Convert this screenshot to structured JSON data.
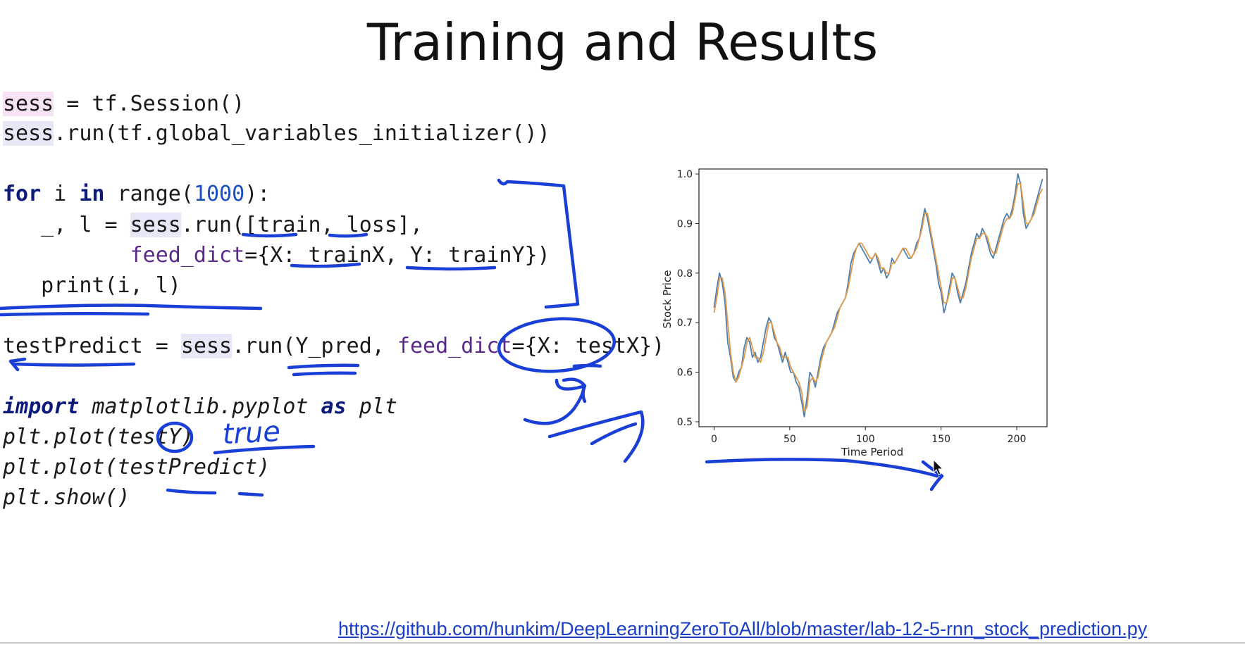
{
  "slide": {
    "title": "Training and Results",
    "link": "https://github.com/hunkim/DeepLearningZeroToAll/blob/master/lab-12-5-rnn_stock_prediction.py"
  },
  "code": {
    "l1": {
      "a": "sess",
      "b": " = tf.Session()"
    },
    "l2": {
      "a": "sess",
      "b": ".run(tf.global_variables_initializer())"
    },
    "l3": {
      "kw1": "for",
      "b": " i ",
      "kw2": "in",
      "c": " range(",
      "num": "1000",
      "d": "):"
    },
    "l4": {
      "a": "   _, l = ",
      "b": "sess",
      "c": ".run([train, loss],"
    },
    "l5": {
      "a": "          ",
      "kwarg": "feed_dict",
      "b": "={X: trainX, Y: trainY})"
    },
    "l6": {
      "a": "   print(i, l)"
    },
    "l7": {
      "a": "testPredict = ",
      "b": "sess",
      "c": ".run(Y_pred, ",
      "kwarg": "feed_dict",
      "d": "={X: testX})"
    },
    "l8": {
      "kw1": "import",
      "b": " matplotlib.pyplot ",
      "kw2": "as",
      "c": " plt"
    },
    "l9": {
      "a": "plt.plot(testY)"
    },
    "l10": {
      "a": "plt.plot(testPredict)"
    },
    "l11": {
      "a": "plt.show()"
    }
  },
  "annotation": {
    "true_word": "true"
  },
  "chart_data": {
    "type": "line",
    "xlabel": "Time Period",
    "ylabel": "Stock Price",
    "xlim": [
      -10,
      220
    ],
    "ylim": [
      0.49,
      1.01
    ],
    "xticks": [
      0,
      50,
      100,
      150,
      200
    ],
    "yticks": [
      0.5,
      0.6,
      0.7,
      0.8,
      0.9,
      1.0
    ],
    "grid": false,
    "series": [
      {
        "color": "#4a7fb0",
        "values": [
          0.73,
          0.77,
          0.8,
          0.78,
          0.74,
          0.66,
          0.63,
          0.59,
          0.58,
          0.6,
          0.61,
          0.65,
          0.67,
          0.66,
          0.63,
          0.64,
          0.62,
          0.63,
          0.66,
          0.69,
          0.71,
          0.7,
          0.67,
          0.66,
          0.64,
          0.62,
          0.64,
          0.62,
          0.6,
          0.6,
          0.58,
          0.57,
          0.54,
          0.51,
          0.55,
          0.6,
          0.59,
          0.57,
          0.6,
          0.63,
          0.65,
          0.66,
          0.67,
          0.68,
          0.7,
          0.72,
          0.73,
          0.74,
          0.75,
          0.78,
          0.82,
          0.84,
          0.85,
          0.86,
          0.85,
          0.84,
          0.83,
          0.82,
          0.83,
          0.84,
          0.82,
          0.8,
          0.81,
          0.79,
          0.8,
          0.83,
          0.82,
          0.83,
          0.84,
          0.85,
          0.84,
          0.83,
          0.83,
          0.84,
          0.86,
          0.87,
          0.9,
          0.93,
          0.91,
          0.88,
          0.85,
          0.82,
          0.78,
          0.76,
          0.72,
          0.74,
          0.77,
          0.8,
          0.79,
          0.76,
          0.74,
          0.76,
          0.78,
          0.81,
          0.84,
          0.86,
          0.88,
          0.87,
          0.89,
          0.88,
          0.86,
          0.84,
          0.83,
          0.85,
          0.87,
          0.89,
          0.91,
          0.92,
          0.91,
          0.93,
          0.96,
          1.0,
          0.98,
          0.92,
          0.89,
          0.9,
          0.91,
          0.93,
          0.95,
          0.97,
          0.99
        ]
      },
      {
        "color": "#e39a46",
        "values": [
          0.72,
          0.75,
          0.79,
          0.79,
          0.76,
          0.7,
          0.64,
          0.6,
          0.58,
          0.59,
          0.61,
          0.63,
          0.66,
          0.67,
          0.65,
          0.63,
          0.63,
          0.62,
          0.64,
          0.67,
          0.7,
          0.7,
          0.68,
          0.66,
          0.65,
          0.63,
          0.63,
          0.63,
          0.61,
          0.6,
          0.59,
          0.58,
          0.56,
          0.52,
          0.53,
          0.58,
          0.59,
          0.58,
          0.59,
          0.62,
          0.64,
          0.66,
          0.67,
          0.68,
          0.69,
          0.71,
          0.73,
          0.74,
          0.75,
          0.77,
          0.8,
          0.83,
          0.85,
          0.86,
          0.86,
          0.85,
          0.84,
          0.83,
          0.83,
          0.84,
          0.83,
          0.81,
          0.81,
          0.8,
          0.8,
          0.82,
          0.82,
          0.83,
          0.84,
          0.85,
          0.85,
          0.84,
          0.83,
          0.84,
          0.85,
          0.87,
          0.89,
          0.92,
          0.92,
          0.89,
          0.86,
          0.83,
          0.8,
          0.77,
          0.74,
          0.74,
          0.76,
          0.79,
          0.79,
          0.77,
          0.75,
          0.75,
          0.77,
          0.8,
          0.83,
          0.85,
          0.87,
          0.87,
          0.88,
          0.88,
          0.87,
          0.85,
          0.84,
          0.84,
          0.86,
          0.88,
          0.9,
          0.91,
          0.91,
          0.92,
          0.95,
          0.98,
          0.98,
          0.94,
          0.9,
          0.9,
          0.91,
          0.92,
          0.94,
          0.96,
          0.97
        ]
      }
    ]
  }
}
